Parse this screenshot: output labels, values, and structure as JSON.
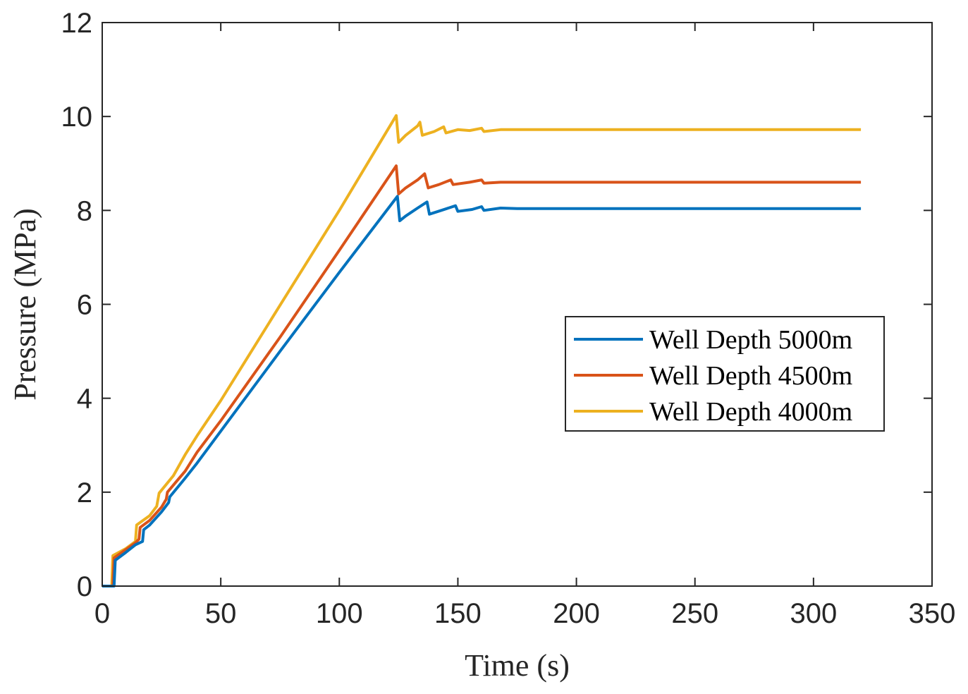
{
  "chart_data": {
    "type": "line",
    "xlabel": "Time (s)",
    "ylabel": "Pressure (MPa)",
    "xlim": [
      0,
      350
    ],
    "ylim": [
      0,
      12
    ],
    "xticks": [
      "0",
      "50",
      "100",
      "150",
      "200",
      "250",
      "300",
      "350"
    ],
    "yticks": [
      "0",
      "2",
      "4",
      "6",
      "8",
      "10",
      "12"
    ],
    "grid": false,
    "legend_position": "right-middle",
    "series": [
      {
        "name": "Well Depth 5000m",
        "color": "#0072BD",
        "points": [
          [
            0,
            0
          ],
          [
            5,
            0
          ],
          [
            5.5,
            0.55
          ],
          [
            10,
            0.72
          ],
          [
            14,
            0.88
          ],
          [
            17,
            0.95
          ],
          [
            17.5,
            1.2
          ],
          [
            20,
            1.3
          ],
          [
            25,
            1.58
          ],
          [
            28,
            1.78
          ],
          [
            28.5,
            1.9
          ],
          [
            35,
            2.3
          ],
          [
            40,
            2.62
          ],
          [
            50,
            3.3
          ],
          [
            75,
            5.0
          ],
          [
            100,
            6.68
          ],
          [
            124.5,
            8.3
          ],
          [
            125.5,
            7.78
          ],
          [
            128,
            7.88
          ],
          [
            133,
            8.05
          ],
          [
            137,
            8.18
          ],
          [
            138,
            7.92
          ],
          [
            143,
            8.0
          ],
          [
            149,
            8.1
          ],
          [
            150,
            7.98
          ],
          [
            156,
            8.02
          ],
          [
            160,
            8.08
          ],
          [
            161,
            8.0
          ],
          [
            168,
            8.05
          ],
          [
            175,
            8.04
          ],
          [
            200,
            8.04
          ],
          [
            250,
            8.04
          ],
          [
            320,
            8.04
          ]
        ]
      },
      {
        "name": "Well Depth 4500m",
        "color": "#D95319",
        "points": [
          [
            0,
            0
          ],
          [
            4.5,
            0
          ],
          [
            5,
            0.6
          ],
          [
            10,
            0.78
          ],
          [
            14,
            0.92
          ],
          [
            15.5,
            1.0
          ],
          [
            16,
            1.25
          ],
          [
            20,
            1.4
          ],
          [
            25,
            1.68
          ],
          [
            27,
            1.85
          ],
          [
            27.5,
            2.0
          ],
          [
            35,
            2.45
          ],
          [
            40,
            2.85
          ],
          [
            50,
            3.52
          ],
          [
            75,
            5.3
          ],
          [
            100,
            7.15
          ],
          [
            124,
            8.95
          ],
          [
            125,
            8.35
          ],
          [
            128,
            8.48
          ],
          [
            133,
            8.65
          ],
          [
            136,
            8.78
          ],
          [
            137.5,
            8.48
          ],
          [
            142,
            8.55
          ],
          [
            147,
            8.65
          ],
          [
            148,
            8.55
          ],
          [
            155,
            8.6
          ],
          [
            160,
            8.65
          ],
          [
            161,
            8.58
          ],
          [
            168,
            8.6
          ],
          [
            175,
            8.6
          ],
          [
            200,
            8.6
          ],
          [
            250,
            8.6
          ],
          [
            320,
            8.6
          ]
        ]
      },
      {
        "name": "Well Depth 4000m",
        "color": "#EDB120",
        "points": [
          [
            0,
            0
          ],
          [
            4,
            0
          ],
          [
            4.5,
            0.65
          ],
          [
            10,
            0.8
          ],
          [
            14,
            0.95
          ],
          [
            14.5,
            1.3
          ],
          [
            20,
            1.5
          ],
          [
            23,
            1.7
          ],
          [
            24,
            1.98
          ],
          [
            30,
            2.35
          ],
          [
            35,
            2.8
          ],
          [
            40,
            3.2
          ],
          [
            50,
            3.95
          ],
          [
            75,
            5.98
          ],
          [
            100,
            8.0
          ],
          [
            124,
            10.02
          ],
          [
            125,
            9.45
          ],
          [
            128,
            9.6
          ],
          [
            133,
            9.8
          ],
          [
            134,
            9.88
          ],
          [
            135,
            9.6
          ],
          [
            140,
            9.68
          ],
          [
            144,
            9.78
          ],
          [
            145,
            9.65
          ],
          [
            150,
            9.72
          ],
          [
            155,
            9.7
          ],
          [
            160,
            9.75
          ],
          [
            161,
            9.68
          ],
          [
            168,
            9.72
          ],
          [
            175,
            9.72
          ],
          [
            200,
            9.72
          ],
          [
            250,
            9.72
          ],
          [
            320,
            9.72
          ]
        ]
      }
    ]
  }
}
